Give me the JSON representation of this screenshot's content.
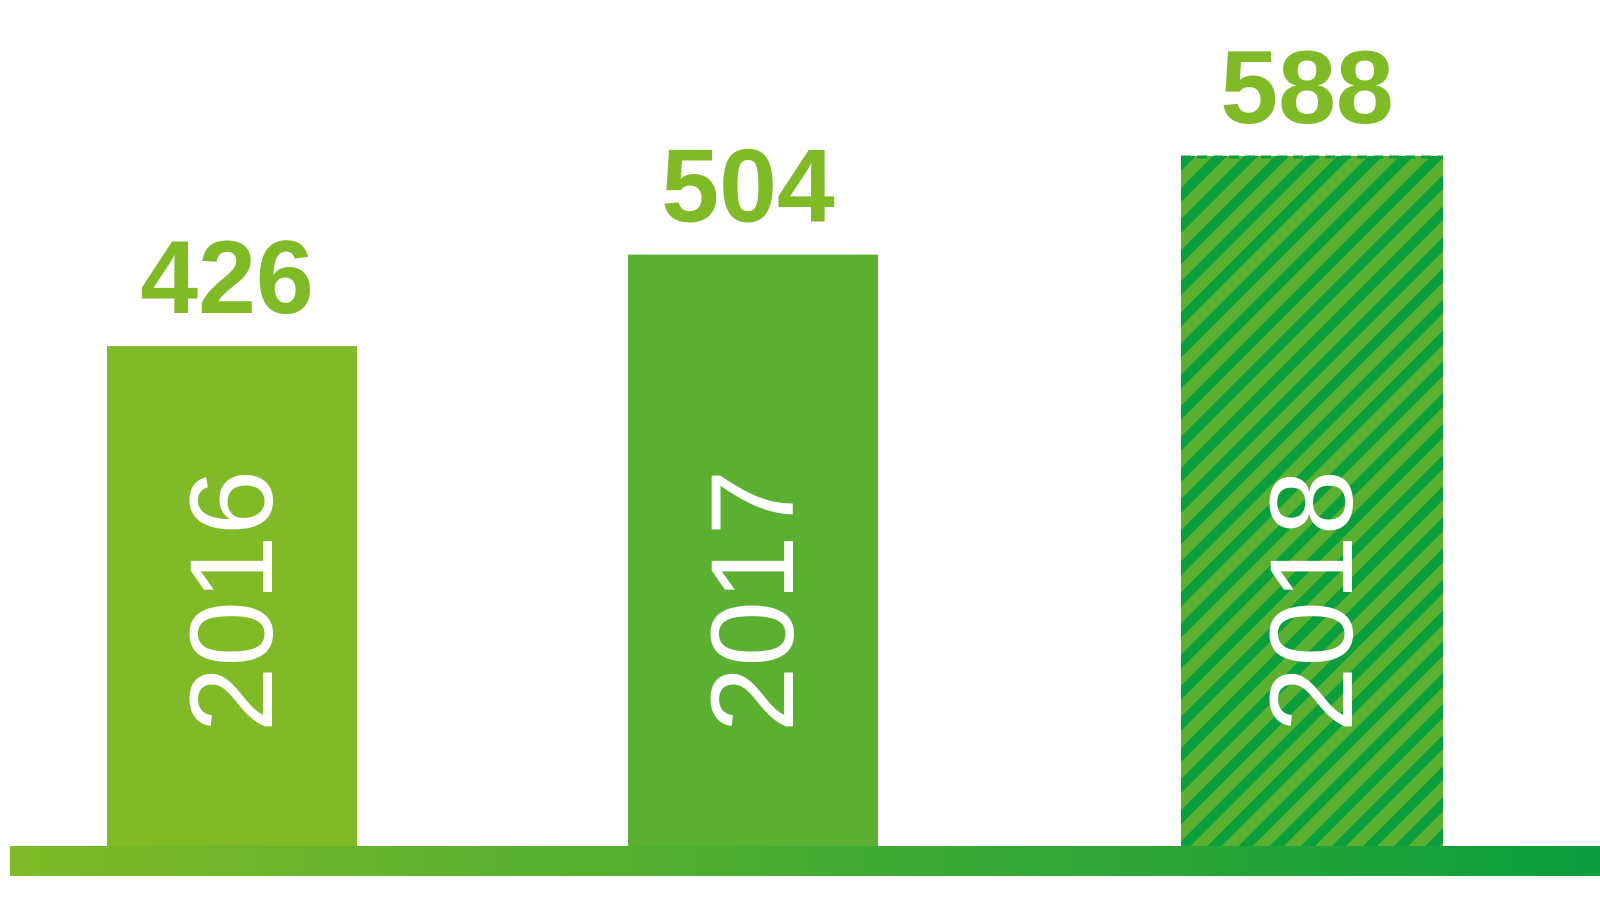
{
  "chart_data": {
    "type": "bar",
    "title": "",
    "xlabel": "",
    "ylabel": "",
    "categories": [
      "2016",
      "2017",
      "2018"
    ],
    "values": [
      426,
      504,
      588
    ],
    "ylim": [
      0,
      600
    ],
    "grid": false,
    "legend": "none",
    "bar_styles": [
      "solid",
      "solid",
      "hatched"
    ],
    "colors": {
      "bar_2016": "#80ba27",
      "bar_2017": "#5bb032",
      "bar_2018_base": "#5bb032",
      "bar_2018_hatch": "#0a9e3c",
      "value_label": "#80ba27",
      "category_label": "#ffffff",
      "baseline_start": "#80ba27",
      "baseline_end": "#0a9e3c"
    }
  }
}
